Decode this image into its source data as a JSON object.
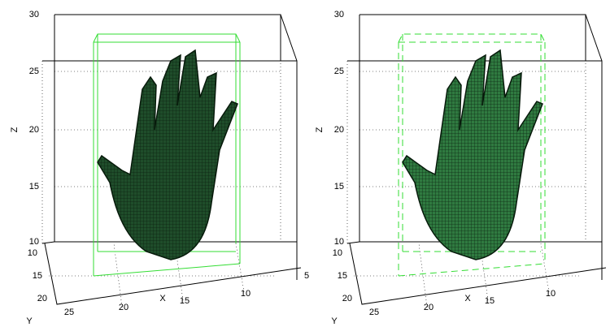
{
  "panels": [
    {
      "z_label": "Z",
      "x_label": "X",
      "y_label": "Y",
      "z_ticks": [
        "10",
        "15",
        "20",
        "25",
        "30"
      ],
      "y_ticks": [
        "10",
        "15",
        "20"
      ],
      "x_ticks": [
        "25",
        "20",
        "15",
        "10",
        "5"
      ]
    },
    {
      "z_label": "Z",
      "x_label": "X",
      "y_label": "Y",
      "z_ticks": [
        "10",
        "15",
        "20",
        "25",
        "30"
      ],
      "y_ticks": [
        "10",
        "15",
        "20"
      ],
      "x_ticks": [
        "25",
        "20",
        "15",
        "10"
      ]
    }
  ]
}
